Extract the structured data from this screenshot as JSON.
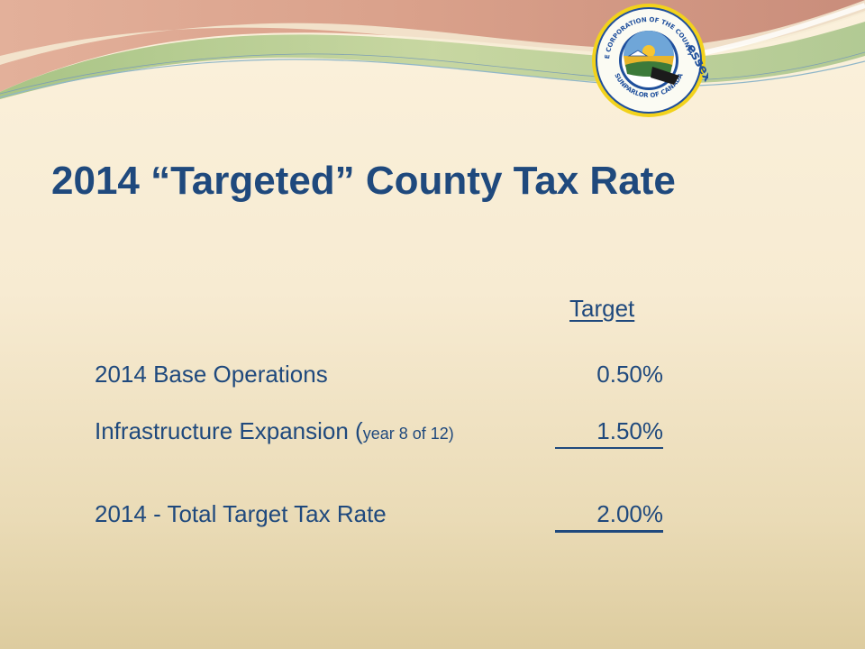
{
  "slide": {
    "title": "2014 “Targeted” County Tax Rate",
    "column_header": "Target",
    "rows": [
      {
        "label": "2014 Base Operations",
        "label_suffix": "",
        "value": "0.50%"
      },
      {
        "label": "Infrastructure Expansion (",
        "label_suffix": "year 8 of 12)",
        "value": "1.50%"
      },
      {
        "label": "2014 - Total Target Tax Rate",
        "label_suffix": "",
        "value": "2.00%"
      }
    ]
  },
  "logo": {
    "top_text": "THE CORPORATION OF THE COUNTY OF",
    "name": "essex",
    "bottom_text": "SUNPARLOR OF CANADA"
  },
  "colors": {
    "text": "#1f497d",
    "background_top": "#fbf1dc",
    "background_bottom": "#ddcc9f",
    "wave_green": "#b5c98a",
    "wave_rose": "#d49a82",
    "seal_ring": "#f2d21c"
  }
}
